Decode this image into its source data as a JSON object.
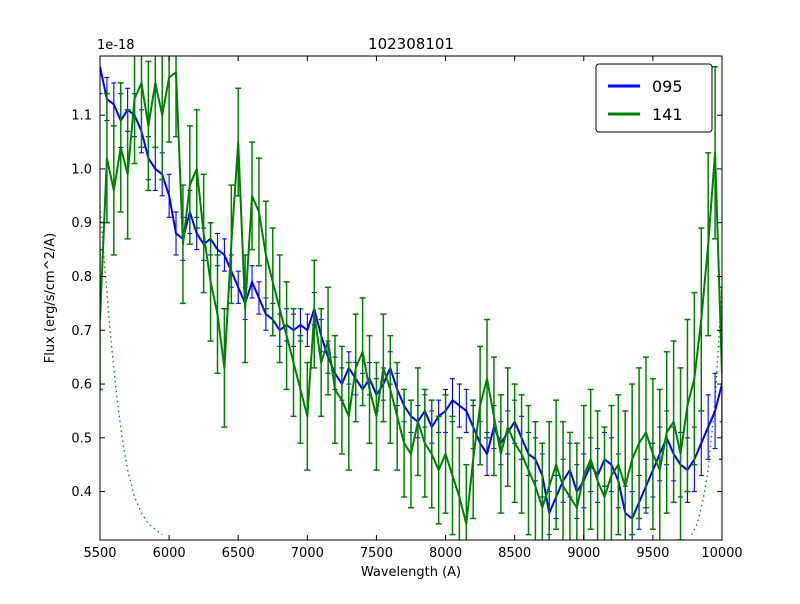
{
  "chart_data": {
    "type": "line",
    "title": "102308101",
    "xlabel": "Wavelength (A)",
    "ylabel": "Flux (erg/s/cm^2/A)",
    "offset_label": "1e-18",
    "xlim": [
      5500,
      10000
    ],
    "ylim": [
      0.31,
      1.21
    ],
    "xticks": [
      5500,
      6000,
      6500,
      7000,
      7500,
      8000,
      8500,
      9000,
      9500,
      10000
    ],
    "xtick_labels": [
      "5500",
      "6000",
      "6500",
      "7000",
      "7500",
      "8000",
      "8500",
      "9000",
      "9500",
      "10000"
    ],
    "yticks": [
      0.4,
      0.5,
      0.6,
      0.7,
      0.8,
      0.9,
      1.0,
      1.1
    ],
    "ytick_labels": [
      "0.4",
      "0.5",
      "0.6",
      "0.7",
      "0.8",
      "0.9",
      "1.0",
      "1.1"
    ],
    "grid": false,
    "legend_position": "upper right",
    "series": [
      {
        "name": "095",
        "color": "#0000ff",
        "points": [
          [
            5500,
            1.19,
            0.05
          ],
          [
            5550,
            1.13,
            0.04
          ],
          [
            5600,
            1.12,
            0.04
          ],
          [
            5650,
            1.09,
            0.05
          ],
          [
            5700,
            1.11,
            0.04
          ],
          [
            5750,
            1.1,
            0.04
          ],
          [
            5800,
            1.07,
            0.04
          ],
          [
            5850,
            1.02,
            0.04
          ],
          [
            5900,
            1.0,
            0.04
          ],
          [
            5950,
            0.99,
            0.04
          ],
          [
            6000,
            0.95,
            0.04
          ],
          [
            6050,
            0.88,
            0.04
          ],
          [
            6100,
            0.87,
            0.04
          ],
          [
            6150,
            0.92,
            0.04
          ],
          [
            6200,
            0.88,
            0.03
          ],
          [
            6250,
            0.86,
            0.03
          ],
          [
            6300,
            0.87,
            0.03
          ],
          [
            6350,
            0.85,
            0.03
          ],
          [
            6400,
            0.84,
            0.03
          ],
          [
            6450,
            0.81,
            0.03
          ],
          [
            6500,
            0.78,
            0.03
          ],
          [
            6550,
            0.75,
            0.03
          ],
          [
            6600,
            0.79,
            0.03
          ],
          [
            6650,
            0.76,
            0.03
          ],
          [
            6700,
            0.73,
            0.03
          ],
          [
            6750,
            0.72,
            0.03
          ],
          [
            6800,
            0.7,
            0.03
          ],
          [
            6850,
            0.71,
            0.03
          ],
          [
            6900,
            0.7,
            0.03
          ],
          [
            6950,
            0.71,
            0.03
          ],
          [
            7000,
            0.7,
            0.03
          ],
          [
            7050,
            0.74,
            0.03
          ],
          [
            7100,
            0.69,
            0.03
          ],
          [
            7150,
            0.65,
            0.03
          ],
          [
            7200,
            0.62,
            0.03
          ],
          [
            7250,
            0.6,
            0.03
          ],
          [
            7300,
            0.63,
            0.03
          ],
          [
            7350,
            0.61,
            0.03
          ],
          [
            7400,
            0.59,
            0.03
          ],
          [
            7450,
            0.61,
            0.03
          ],
          [
            7500,
            0.58,
            0.03
          ],
          [
            7550,
            0.6,
            0.03
          ],
          [
            7600,
            0.63,
            0.03
          ],
          [
            7650,
            0.59,
            0.03
          ],
          [
            7700,
            0.56,
            0.03
          ],
          [
            7750,
            0.54,
            0.03
          ],
          [
            7800,
            0.53,
            0.03
          ],
          [
            7850,
            0.55,
            0.03
          ],
          [
            7900,
            0.52,
            0.03
          ],
          [
            7950,
            0.54,
            0.03
          ],
          [
            8000,
            0.55,
            0.04
          ],
          [
            8050,
            0.57,
            0.04
          ],
          [
            8100,
            0.56,
            0.04
          ],
          [
            8150,
            0.55,
            0.04
          ],
          [
            8200,
            0.52,
            0.04
          ],
          [
            8250,
            0.49,
            0.04
          ],
          [
            8300,
            0.47,
            0.04
          ],
          [
            8350,
            0.52,
            0.04
          ],
          [
            8400,
            0.49,
            0.04
          ],
          [
            8450,
            0.51,
            0.04
          ],
          [
            8500,
            0.53,
            0.04
          ],
          [
            8550,
            0.5,
            0.04
          ],
          [
            8600,
            0.47,
            0.04
          ],
          [
            8650,
            0.46,
            0.04
          ],
          [
            8700,
            0.43,
            0.04
          ],
          [
            8750,
            0.36,
            0.04
          ],
          [
            8800,
            0.39,
            0.04
          ],
          [
            8850,
            0.42,
            0.04
          ],
          [
            8900,
            0.44,
            0.05
          ],
          [
            8950,
            0.4,
            0.05
          ],
          [
            9000,
            0.42,
            0.05
          ],
          [
            9050,
            0.45,
            0.05
          ],
          [
            9100,
            0.43,
            0.05
          ],
          [
            9150,
            0.46,
            0.05
          ],
          [
            9200,
            0.45,
            0.05
          ],
          [
            9250,
            0.42,
            0.05
          ],
          [
            9300,
            0.36,
            0.05
          ],
          [
            9350,
            0.35,
            0.05
          ],
          [
            9400,
            0.38,
            0.05
          ],
          [
            9450,
            0.41,
            0.05
          ],
          [
            9500,
            0.44,
            0.05
          ],
          [
            9550,
            0.47,
            0.05
          ],
          [
            9600,
            0.5,
            0.05
          ],
          [
            9650,
            0.47,
            0.05
          ],
          [
            9700,
            0.45,
            0.06
          ],
          [
            9750,
            0.44,
            0.06
          ],
          [
            9800,
            0.46,
            0.06
          ],
          [
            9850,
            0.49,
            0.06
          ],
          [
            9900,
            0.52,
            0.06
          ],
          [
            9950,
            0.55,
            0.07
          ],
          [
            10000,
            0.6,
            0.07
          ]
        ]
      },
      {
        "name": "141",
        "color": "#008000",
        "points": [
          [
            5500,
            0.72,
            0.13
          ],
          [
            5550,
            1.02,
            0.12
          ],
          [
            5600,
            0.96,
            0.12
          ],
          [
            5650,
            1.04,
            0.12
          ],
          [
            5700,
            0.99,
            0.12
          ],
          [
            5750,
            1.13,
            0.12
          ],
          [
            5800,
            1.16,
            0.12
          ],
          [
            5850,
            1.08,
            0.12
          ],
          [
            5900,
            1.16,
            0.12
          ],
          [
            5950,
            1.1,
            0.12
          ],
          [
            6000,
            1.17,
            0.12
          ],
          [
            6050,
            1.18,
            0.12
          ],
          [
            6100,
            0.86,
            0.11
          ],
          [
            6150,
            0.97,
            0.11
          ],
          [
            6200,
            1.0,
            0.11
          ],
          [
            6250,
            0.88,
            0.11
          ],
          [
            6300,
            0.79,
            0.11
          ],
          [
            6350,
            0.73,
            0.11
          ],
          [
            6400,
            0.63,
            0.11
          ],
          [
            6450,
            0.86,
            0.11
          ],
          [
            6500,
            1.05,
            0.1
          ],
          [
            6550,
            0.74,
            0.1
          ],
          [
            6600,
            0.95,
            0.1
          ],
          [
            6650,
            0.92,
            0.1
          ],
          [
            6700,
            0.84,
            0.1
          ],
          [
            6750,
            0.79,
            0.1
          ],
          [
            6800,
            0.74,
            0.1
          ],
          [
            6850,
            0.69,
            0.1
          ],
          [
            6900,
            0.64,
            0.1
          ],
          [
            6950,
            0.59,
            0.1
          ],
          [
            7000,
            0.54,
            0.1
          ],
          [
            7050,
            0.73,
            0.1
          ],
          [
            7100,
            0.64,
            0.1
          ],
          [
            7150,
            0.68,
            0.1
          ],
          [
            7200,
            0.59,
            0.1
          ],
          [
            7250,
            0.57,
            0.1
          ],
          [
            7300,
            0.54,
            0.1
          ],
          [
            7350,
            0.63,
            0.1
          ],
          [
            7400,
            0.66,
            0.1
          ],
          [
            7450,
            0.59,
            0.1
          ],
          [
            7500,
            0.54,
            0.1
          ],
          [
            7550,
            0.63,
            0.1
          ],
          [
            7600,
            0.59,
            0.1
          ],
          [
            7650,
            0.54,
            0.1
          ],
          [
            7700,
            0.49,
            0.1
          ],
          [
            7750,
            0.47,
            0.1
          ],
          [
            7800,
            0.53,
            0.1
          ],
          [
            7850,
            0.49,
            0.1
          ],
          [
            7900,
            0.47,
            0.1
          ],
          [
            7950,
            0.44,
            0.1
          ],
          [
            8000,
            0.47,
            0.11
          ],
          [
            8050,
            0.43,
            0.11
          ],
          [
            8100,
            0.39,
            0.11
          ],
          [
            8150,
            0.34,
            0.11
          ],
          [
            8200,
            0.46,
            0.11
          ],
          [
            8250,
            0.56,
            0.11
          ],
          [
            8300,
            0.61,
            0.11
          ],
          [
            8350,
            0.54,
            0.11
          ],
          [
            8400,
            0.47,
            0.11
          ],
          [
            8450,
            0.52,
            0.11
          ],
          [
            8500,
            0.49,
            0.11
          ],
          [
            8550,
            0.47,
            0.11
          ],
          [
            8600,
            0.44,
            0.12
          ],
          [
            8650,
            0.41,
            0.12
          ],
          [
            8700,
            0.37,
            0.12
          ],
          [
            8750,
            0.41,
            0.12
          ],
          [
            8800,
            0.45,
            0.12
          ],
          [
            8850,
            0.41,
            0.12
          ],
          [
            8900,
            0.39,
            0.12
          ],
          [
            8950,
            0.37,
            0.12
          ],
          [
            9000,
            0.43,
            0.13
          ],
          [
            9050,
            0.46,
            0.13
          ],
          [
            9100,
            0.42,
            0.13
          ],
          [
            9150,
            0.39,
            0.13
          ],
          [
            9200,
            0.43,
            0.13
          ],
          [
            9250,
            0.45,
            0.13
          ],
          [
            9300,
            0.41,
            0.14
          ],
          [
            9350,
            0.46,
            0.14
          ],
          [
            9400,
            0.49,
            0.14
          ],
          [
            9450,
            0.51,
            0.14
          ],
          [
            9500,
            0.47,
            0.14
          ],
          [
            9550,
            0.44,
            0.15
          ],
          [
            9600,
            0.51,
            0.15
          ],
          [
            9650,
            0.53,
            0.15
          ],
          [
            9700,
            0.47,
            0.16
          ],
          [
            9750,
            0.56,
            0.16
          ],
          [
            9800,
            0.61,
            0.16
          ],
          [
            9850,
            0.72,
            0.17
          ],
          [
            9900,
            0.86,
            0.17
          ],
          [
            9950,
            1.03,
            0.16
          ],
          [
            10000,
            0.62,
            0.16
          ]
        ]
      }
    ],
    "dotted_series": {
      "name": "sensitivity-curve",
      "color": "#008000",
      "style": "dotted",
      "segments": [
        [
          [
            5500,
            0.93
          ],
          [
            5540,
            0.8
          ],
          [
            5580,
            0.68
          ],
          [
            5620,
            0.58
          ],
          [
            5660,
            0.5
          ],
          [
            5700,
            0.44
          ],
          [
            5750,
            0.39
          ],
          [
            5800,
            0.36
          ],
          [
            5850,
            0.34
          ],
          [
            5900,
            0.33
          ],
          [
            5950,
            0.32
          ]
        ],
        [
          [
            9780,
            0.32
          ],
          [
            9820,
            0.34
          ],
          [
            9860,
            0.38
          ],
          [
            9900,
            0.44
          ],
          [
            9950,
            0.57
          ],
          [
            10000,
            0.78
          ]
        ]
      ]
    },
    "legend": {
      "entries": [
        "095",
        "141"
      ]
    }
  }
}
